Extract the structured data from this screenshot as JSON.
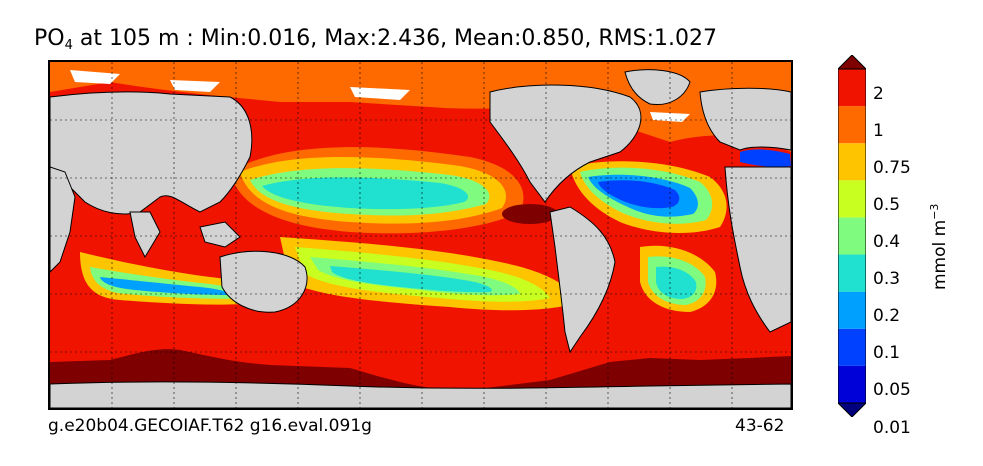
{
  "title": {
    "variable": "PO",
    "subscript": "4",
    "text": " at 105 m : Min:0.016, Max:2.436, Mean:0.850, RMS:1.027"
  },
  "footer": {
    "left": "g.e20b04.GECOIAF.T62 g16.eval.091g",
    "right": "43-62"
  },
  "colorbar": {
    "label_main": "mmol m",
    "label_sup": "−3",
    "ticks": [
      "2",
      "1",
      "0.75",
      "0.5",
      "0.4",
      "0.3",
      "0.2",
      "0.1",
      "0.05",
      "0.01"
    ],
    "colors": [
      "#00007f",
      "#0000d9",
      "#0040ff",
      "#00a0ff",
      "#20e0d0",
      "#7ffc7f",
      "#c8ff20",
      "#ffc400",
      "#ff6a00",
      "#f01400",
      "#7f0000"
    ],
    "land_color": "#d3d3d3",
    "missing_color": "#ffffff"
  }
}
